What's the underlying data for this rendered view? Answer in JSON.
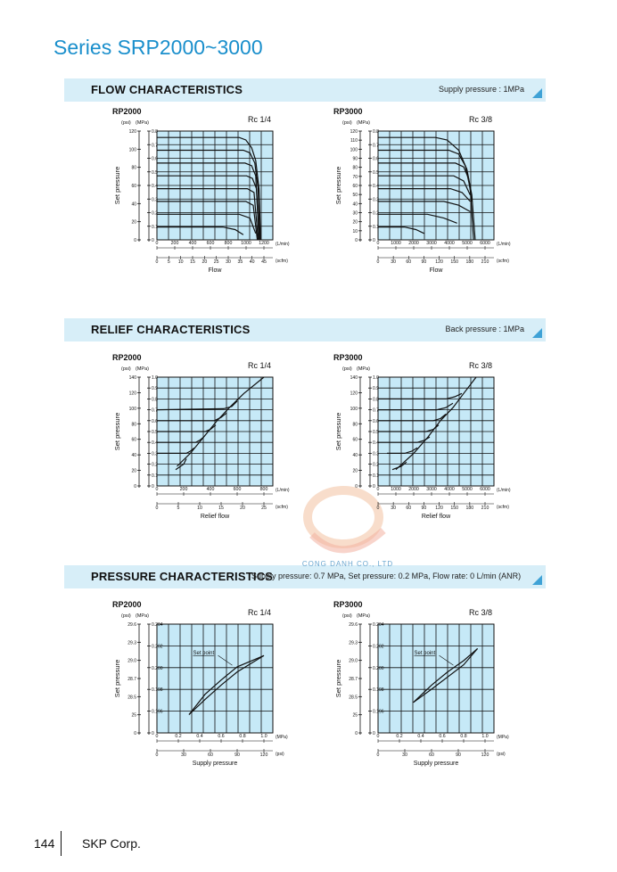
{
  "series_title": "Series SRP2000~3000",
  "sections": {
    "flow": {
      "title": "FLOW CHARACTERISTICS",
      "note": "Supply pressure : 1MPa"
    },
    "relief": {
      "title": "RELIEF CHARACTERISTICS",
      "note": "Back pressure : 1MPa"
    },
    "pressure": {
      "title": "PRESSURE CHARACTERISTICS",
      "note": "Supply pressure: 0.7 MPa,  Set pressure: 0.2 MPa,  Flow rate: 0 L/min (ANR)"
    }
  },
  "watermark": "CONG DANH CO., LTD",
  "footer": {
    "page": "144",
    "company": "SKP Corp."
  },
  "chart_data": [
    {
      "type": "line",
      "model": "RP2000",
      "port": "Rc 1/4",
      "units_top": {
        "psi": "(psi)",
        "mpa": "(MPa)"
      },
      "ylabel": "Set pressure",
      "xlabel": "Flow",
      "psi_ticks": [
        "120",
        "100",
        "80",
        "60",
        "40",
        "20",
        "0"
      ],
      "mpa_ticks": [
        "0.8",
        "0.7",
        "0.6",
        "0.5",
        "0.4",
        "0.3",
        "0.2",
        "0.1",
        "0"
      ],
      "x1_ticks": [
        "0",
        "200",
        "400",
        "600",
        "800",
        "1000",
        "1200"
      ],
      "x1_unit": "(L/min)",
      "x2_ticks": [
        "0",
        "5",
        "10",
        "15",
        "20",
        "25",
        "30",
        "35",
        "40",
        "45"
      ],
      "x2_unit": "(scfm)",
      "xlim": [
        0,
        1300
      ],
      "ylim": [
        0,
        0.85
      ],
      "series": [
        {
          "values": [
            [
              0,
              0.8
            ],
            [
              1000,
              0.8
            ],
            [
              1080,
              0.78
            ],
            [
              1150,
              0.72
            ],
            [
              1200,
              0.62
            ],
            [
              1240,
              0.4
            ],
            [
              1260,
              0.0
            ]
          ]
        },
        {
          "values": [
            [
              0,
              0.7
            ],
            [
              1050,
              0.7
            ],
            [
              1130,
              0.68
            ],
            [
              1190,
              0.6
            ],
            [
              1230,
              0.4
            ],
            [
              1250,
              0.0
            ]
          ]
        },
        {
          "values": [
            [
              0,
              0.6
            ],
            [
              1070,
              0.6
            ],
            [
              1150,
              0.58
            ],
            [
              1200,
              0.5
            ],
            [
              1240,
              0.0
            ]
          ]
        },
        {
          "values": [
            [
              0,
              0.5
            ],
            [
              1090,
              0.5
            ],
            [
              1160,
              0.48
            ],
            [
              1210,
              0.4
            ],
            [
              1240,
              0.0
            ]
          ]
        },
        {
          "values": [
            [
              0,
              0.4
            ],
            [
              1100,
              0.4
            ],
            [
              1180,
              0.37
            ],
            [
              1230,
              0.0
            ]
          ]
        },
        {
          "values": [
            [
              0,
              0.3
            ],
            [
              1080,
              0.3
            ],
            [
              1170,
              0.27
            ],
            [
              1220,
              0.0
            ]
          ]
        },
        {
          "values": [
            [
              0,
              0.2
            ],
            [
              1000,
              0.2
            ],
            [
              1130,
              0.17
            ],
            [
              1200,
              0.05
            ]
          ]
        },
        {
          "values": [
            [
              0,
              0.1
            ],
            [
              800,
              0.1
            ],
            [
              950,
              0.08
            ],
            [
              1050,
              0.04
            ]
          ]
        }
      ]
    },
    {
      "type": "line",
      "model": "RP3000",
      "port": "Rc 3/8",
      "units_top": {
        "psi": "(psi)",
        "mpa": "(MPa)"
      },
      "ylabel": "Set pressure",
      "xlabel": "Flow",
      "psi_ticks": [
        "120",
        "110",
        "100",
        "90",
        "80",
        "70",
        "60",
        "50",
        "40",
        "30",
        "20",
        "10",
        "0"
      ],
      "mpa_ticks": [
        "0.8",
        "0.7",
        "0.6",
        "0.5",
        "0.4",
        "0.3",
        "0.2",
        "0.1",
        "0"
      ],
      "x1_ticks": [
        "0",
        "1000",
        "2000",
        "3000",
        "4000",
        "5000",
        "6000"
      ],
      "x1_unit": "(L/min)",
      "x2_ticks": [
        "0",
        "30",
        "60",
        "90",
        "120",
        "150",
        "180",
        "210"
      ],
      "x2_unit": "(scfm)",
      "xlim": [
        0,
        6500
      ],
      "ylim": [
        0,
        0.85
      ],
      "series": [
        {
          "values": [
            [
              0,
              0.8
            ],
            [
              3500,
              0.8
            ],
            [
              4200,
              0.78
            ],
            [
              4900,
              0.7
            ],
            [
              5400,
              0.55
            ],
            [
              5700,
              0.35
            ],
            [
              5900,
              0.0
            ]
          ]
        },
        {
          "values": [
            [
              0,
              0.7
            ],
            [
              4300,
              0.7
            ],
            [
              4900,
              0.67
            ],
            [
              5300,
              0.58
            ],
            [
              5600,
              0.4
            ],
            [
              5800,
              0.0
            ]
          ]
        },
        {
          "values": [
            [
              0,
              0.6
            ],
            [
              4700,
              0.6
            ],
            [
              5200,
              0.57
            ],
            [
              5500,
              0.48
            ],
            [
              5700,
              0.3
            ]
          ]
        },
        {
          "values": [
            [
              0,
              0.5
            ],
            [
              4600,
              0.5
            ],
            [
              5200,
              0.46
            ],
            [
              5600,
              0.35
            ]
          ]
        },
        {
          "values": [
            [
              0,
              0.4
            ],
            [
              4400,
              0.4
            ],
            [
              5100,
              0.37
            ],
            [
              5600,
              0.3
            ]
          ]
        },
        {
          "values": [
            [
              0,
              0.3
            ],
            [
              4000,
              0.3
            ],
            [
              4900,
              0.27
            ],
            [
              5600,
              0.22
            ]
          ]
        },
        {
          "values": [
            [
              0,
              0.2
            ],
            [
              3000,
              0.2
            ],
            [
              4000,
              0.17
            ],
            [
              4800,
              0.13
            ]
          ]
        },
        {
          "values": [
            [
              0,
              0.1
            ],
            [
              1600,
              0.1
            ],
            [
              2300,
              0.08
            ],
            [
              2800,
              0.05
            ]
          ]
        }
      ]
    },
    {
      "type": "line",
      "model": "RP2000",
      "port": "Rc 1/4",
      "units_top": {
        "psi": "(psi)",
        "mpa": "(MPa)"
      },
      "ylabel": "Set pressure",
      "xlabel": "Relief flow",
      "psi_ticks": [
        "140",
        "120",
        "100",
        "80",
        "60",
        "40",
        "20",
        "0"
      ],
      "mpa_ticks": [
        "1.0",
        "0.9",
        "0.8",
        "0.7",
        "0.6",
        "0.5",
        "0.4",
        "0.3",
        "0.2",
        "0.1",
        "0"
      ],
      "x1_ticks": [
        "0",
        "200",
        "400",
        "600",
        "800"
      ],
      "x1_unit": "(L/min)",
      "x2_ticks": [
        "0",
        "5",
        "10",
        "15",
        "20",
        "25"
      ],
      "x2_unit": "(scfm)",
      "xlim": [
        0,
        800
      ],
      "ylim": [
        0,
        1.0
      ],
      "series": [
        {
          "values": [
            [
              150,
              0.18
            ],
            [
              250,
              0.3
            ],
            [
              350,
              0.45
            ],
            [
              450,
              0.6
            ],
            [
              550,
              0.73
            ],
            [
              650,
              0.85
            ],
            [
              800,
              1.0
            ]
          ]
        },
        {
          "values": [
            [
              0,
              0.7
            ],
            [
              500,
              0.71
            ],
            [
              560,
              0.73
            ],
            [
              600,
              0.78
            ]
          ]
        },
        {
          "values": [
            [
              0,
              0.6
            ],
            [
              430,
              0.6
            ],
            [
              480,
              0.63
            ],
            [
              520,
              0.67
            ]
          ]
        },
        {
          "values": [
            [
              0,
              0.5
            ],
            [
              360,
              0.5
            ],
            [
              400,
              0.52
            ],
            [
              440,
              0.56
            ]
          ]
        },
        {
          "values": [
            [
              0,
              0.4
            ],
            [
              290,
              0.4
            ],
            [
              320,
              0.42
            ],
            [
              350,
              0.45
            ]
          ]
        },
        {
          "values": [
            [
              0,
              0.3
            ],
            [
              220,
              0.3
            ],
            [
              250,
              0.32
            ],
            [
              280,
              0.35
            ]
          ]
        },
        {
          "values": [
            [
              140,
              0.15
            ],
            [
              200,
              0.2
            ],
            [
              220,
              0.25
            ]
          ]
        }
      ]
    },
    {
      "type": "line",
      "model": "RP3000",
      "port": "Rc 3/8",
      "units_top": {
        "psi": "(psi)",
        "mpa": "(MPa)"
      },
      "ylabel": "Set pressure",
      "xlabel": "Relief flow",
      "psi_ticks": [
        "140",
        "120",
        "100",
        "80",
        "60",
        "40",
        "20",
        "0"
      ],
      "mpa_ticks": [
        "1.0",
        "0.9",
        "0.8",
        "0.7",
        "0.6",
        "0.5",
        "0.4",
        "0.3",
        "0.2",
        "0.1",
        "0"
      ],
      "x1_ticks": [
        "0",
        "1000",
        "2000",
        "3000",
        "4000",
        "5000",
        "6000"
      ],
      "x1_unit": "(L/min)",
      "x2_ticks": [
        "0",
        "30",
        "60",
        "90",
        "120",
        "150",
        "180",
        "210"
      ],
      "x2_unit": "(scfm)",
      "xlim": [
        0,
        6000
      ],
      "ylim": [
        0,
        1.0
      ],
      "series": [
        {
          "values": [
            [
              1000,
              0.15
            ],
            [
              2000,
              0.3
            ],
            [
              2800,
              0.45
            ],
            [
              3500,
              0.6
            ],
            [
              4200,
              0.72
            ],
            [
              4800,
              0.85
            ],
            [
              5500,
              1.0
            ]
          ]
        },
        {
          "values": [
            [
              0,
              0.8
            ],
            [
              3800,
              0.8
            ],
            [
              4300,
              0.82
            ],
            [
              4700,
              0.85
            ]
          ]
        },
        {
          "values": [
            [
              0,
              0.7
            ],
            [
              3300,
              0.7
            ],
            [
              3800,
              0.72
            ],
            [
              4200,
              0.76
            ]
          ]
        },
        {
          "values": [
            [
              0,
              0.6
            ],
            [
              3100,
              0.6
            ],
            [
              3500,
              0.62
            ],
            [
              3800,
              0.66
            ]
          ]
        },
        {
          "values": [
            [
              0,
              0.5
            ],
            [
              2700,
              0.5
            ],
            [
              3100,
              0.52
            ],
            [
              3400,
              0.56
            ]
          ]
        },
        {
          "values": [
            [
              0,
              0.4
            ],
            [
              2200,
              0.4
            ],
            [
              2600,
              0.42
            ],
            [
              2900,
              0.45
            ]
          ]
        },
        {
          "values": [
            [
              500,
              0.3
            ],
            [
              1500,
              0.3
            ],
            [
              1900,
              0.32
            ],
            [
              2200,
              0.35
            ]
          ]
        },
        {
          "values": [
            [
              800,
              0.15
            ],
            [
              1300,
              0.18
            ],
            [
              1600,
              0.22
            ]
          ]
        }
      ]
    },
    {
      "type": "line",
      "model": "RP2000",
      "port": "Rc 1/4",
      "units_top": {
        "psi": "(psi)",
        "mpa": "(MPa)"
      },
      "ylabel": "Set pressure",
      "xlabel": "Supply pressure",
      "annotation": "Set point",
      "psi_ticks": [
        "29.6",
        "29.3",
        "29.0",
        "28.7",
        "28.5",
        "25",
        "0"
      ],
      "mpa_ticks": [
        "0.204",
        "0.202",
        "0.200",
        "0.198",
        "0.196",
        "0"
      ],
      "x1_ticks": [
        "0",
        "0.2",
        "0.4",
        "0.6",
        "0.8",
        "1.0"
      ],
      "x1_unit": "(MPa)",
      "x2_ticks": [
        "0",
        "30",
        "60",
        "90",
        "120"
      ],
      "x2_unit": "(psi)",
      "xlim": [
        0,
        1.0
      ],
      "ylim": [
        0.1945,
        0.2052
      ],
      "series": [
        {
          "values": [
            [
              0.3,
              0.1963
            ],
            [
              0.45,
              0.1983
            ],
            [
              0.6,
              0.1997
            ],
            [
              0.75,
              0.201
            ],
            [
              1.0,
              0.2021
            ]
          ]
        },
        {
          "values": [
            [
              0.3,
              0.1963
            ],
            [
              0.45,
              0.1978
            ],
            [
              0.6,
              0.1992
            ],
            [
              0.75,
              0.2005
            ],
            [
              1.0,
              0.2021
            ]
          ]
        }
      ]
    },
    {
      "type": "line",
      "model": "RP3000",
      "port": "Rc 3/8",
      "units_top": {
        "psi": "(psi)",
        "mpa": "(MPa)"
      },
      "ylabel": "Set pressure",
      "xlabel": "Supply pressure",
      "annotation": "Set point",
      "psi_ticks": [
        "29.6",
        "29.3",
        "29.0",
        "28.7",
        "28.5",
        "25",
        "0"
      ],
      "mpa_ticks": [
        "0.204",
        "0.202",
        "0.200",
        "0.198",
        "0.196",
        "0"
      ],
      "x1_ticks": [
        "0",
        "0.2",
        "0.4",
        "0.6",
        "0.8",
        "1.0"
      ],
      "x1_unit": "(MPa)",
      "x2_ticks": [
        "0",
        "30",
        "60",
        "90",
        "120"
      ],
      "x2_unit": "(psi)",
      "xlim": [
        0,
        1.0
      ],
      "ylim": [
        0.1945,
        0.2052
      ],
      "series": [
        {
          "values": [
            [
              0.33,
              0.1975
            ],
            [
              0.5,
              0.1992
            ],
            [
              0.65,
              0.2005
            ],
            [
              0.8,
              0.2016
            ],
            [
              0.93,
              0.2028
            ]
          ]
        },
        {
          "values": [
            [
              0.33,
              0.1975
            ],
            [
              0.5,
              0.1988
            ],
            [
              0.65,
              0.2
            ],
            [
              0.8,
              0.2012
            ],
            [
              0.93,
              0.2028
            ]
          ]
        }
      ]
    }
  ]
}
